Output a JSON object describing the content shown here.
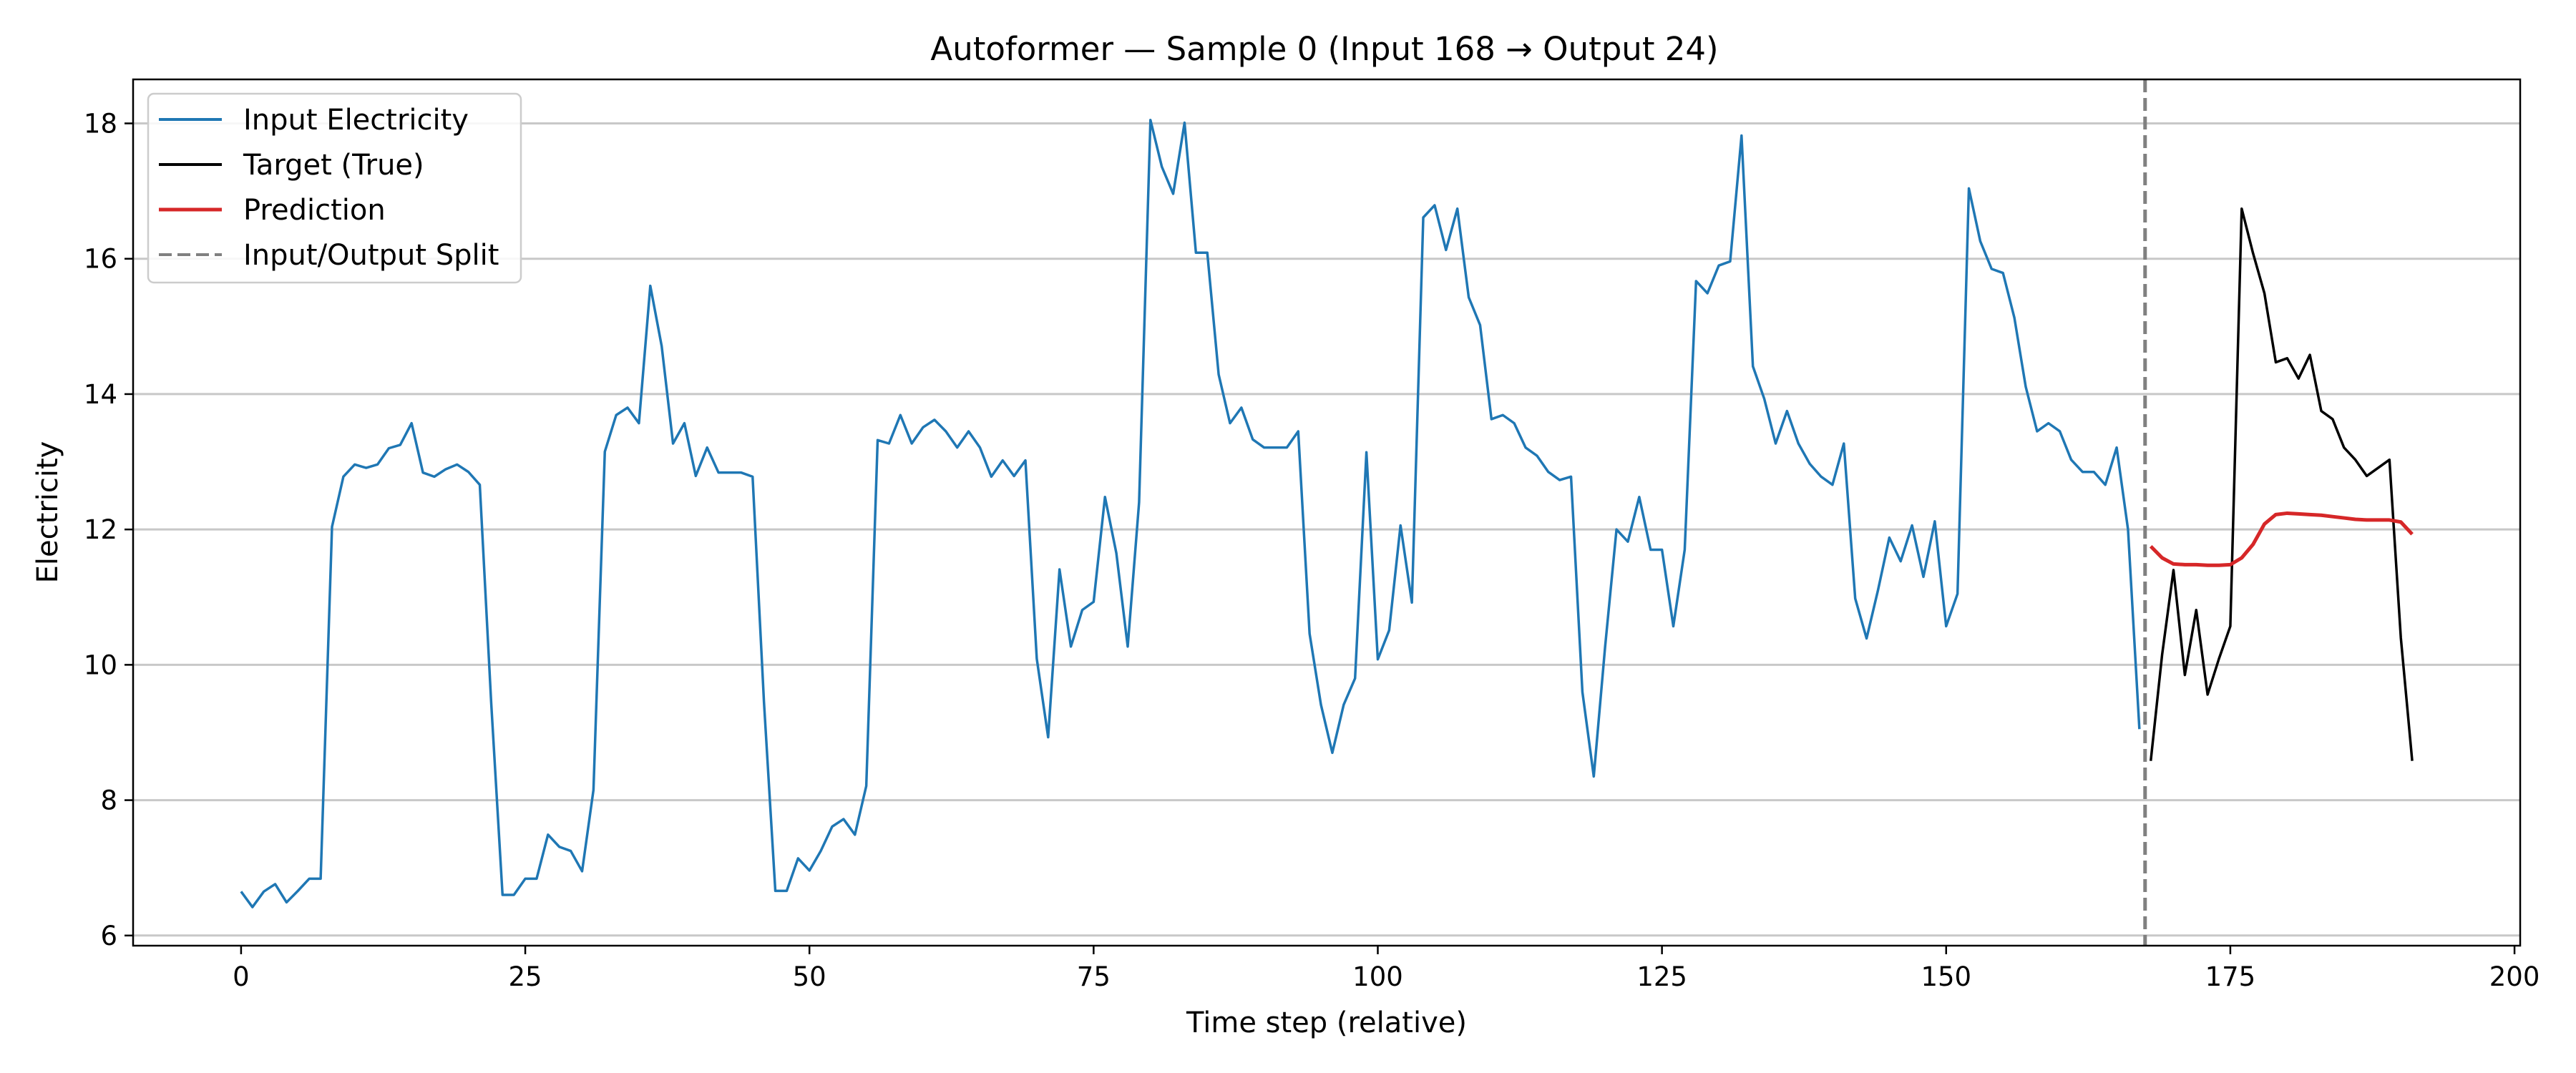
{
  "chart_data": {
    "type": "line",
    "title": "Autoformer — Sample 0 (Input 168 → Output 24)",
    "xlabel": "Time step (relative)",
    "ylabel": "Electricity",
    "xlim": [
      -9.5,
      200.5
    ],
    "ylim": [
      5.85,
      18.65
    ],
    "xticks": [
      0,
      25,
      50,
      75,
      100,
      125,
      150,
      175,
      200
    ],
    "yticks": [
      6,
      8,
      10,
      12,
      14,
      16,
      18
    ],
    "grid": "horizontal",
    "legend_position": "top-left",
    "split_x": 167.5,
    "series": [
      {
        "name": "Input Electricity",
        "color": "#1f77b4",
        "x_start": 0,
        "values": [
          6.65,
          6.42,
          6.65,
          6.76,
          6.49,
          6.66,
          6.84,
          6.84,
          12.04,
          12.78,
          12.96,
          12.91,
          12.96,
          13.2,
          13.25,
          13.57,
          12.84,
          12.78,
          12.89,
          12.96,
          12.85,
          12.66,
          9.45,
          6.6,
          6.6,
          6.84,
          6.84,
          7.49,
          7.31,
          7.25,
          6.95,
          8.15,
          13.15,
          13.69,
          13.8,
          13.57,
          15.6,
          14.71,
          13.27,
          13.57,
          12.79,
          13.21,
          12.84,
          12.84,
          12.84,
          12.78,
          9.45,
          6.66,
          6.66,
          7.14,
          6.96,
          7.25,
          7.61,
          7.72,
          7.49,
          8.21,
          13.32,
          13.27,
          13.69,
          13.27,
          13.51,
          13.62,
          13.45,
          13.21,
          13.45,
          13.21,
          12.78,
          13.02,
          12.79,
          13.02,
          10.09,
          8.93,
          11.41,
          10.27,
          10.81,
          10.93,
          12.48,
          11.65,
          10.27,
          12.4,
          18.05,
          17.36,
          16.96,
          18.01,
          16.09,
          16.09,
          14.29,
          13.57,
          13.8,
          13.33,
          13.21,
          13.21,
          13.21,
          13.45,
          10.46,
          9.41,
          8.7,
          9.41,
          9.8,
          13.14,
          10.08,
          10.51,
          12.06,
          10.92,
          16.61,
          16.79,
          16.13,
          16.74,
          15.43,
          15.02,
          13.63,
          13.69,
          13.57,
          13.21,
          13.09,
          12.85,
          12.73,
          12.78,
          9.6,
          8.35,
          10.27,
          12.0,
          11.82,
          12.48,
          11.7,
          11.7,
          10.57,
          11.7,
          15.67,
          15.49,
          15.9,
          15.96,
          17.82,
          14.41,
          13.93,
          13.27,
          13.75,
          13.27,
          12.97,
          12.78,
          12.66,
          13.27,
          10.98,
          10.39,
          11.1,
          11.88,
          11.53,
          12.06,
          11.3,
          12.12,
          10.57,
          11.05,
          17.04,
          16.26,
          15.85,
          15.79,
          15.13,
          14.11,
          13.45,
          13.57,
          13.45,
          13.03,
          12.85,
          12.85,
          12.66,
          13.21,
          12.0,
          9.05
        ]
      },
      {
        "name": "Target (True)",
        "color": "#000000",
        "x_start": 168,
        "values": [
          8.58,
          10.15,
          11.4,
          9.85,
          10.81,
          9.56,
          10.09,
          10.57,
          16.74,
          16.08,
          15.49,
          14.47,
          14.53,
          14.23,
          14.58,
          13.75,
          13.63,
          13.21,
          13.03,
          12.79,
          12.91,
          13.03,
          10.4,
          8.58
        ]
      },
      {
        "name": "Prediction",
        "color": "#d62728",
        "x_start": 168,
        "values": [
          11.75,
          11.58,
          11.49,
          11.48,
          11.48,
          11.47,
          11.47,
          11.48,
          11.58,
          11.78,
          12.08,
          12.22,
          12.24,
          12.23,
          12.22,
          12.21,
          12.19,
          12.17,
          12.15,
          12.14,
          12.14,
          12.14,
          12.11,
          11.93
        ]
      }
    ],
    "legend": [
      {
        "label": "Input Electricity",
        "color": "#1f77b4",
        "style": "solid"
      },
      {
        "label": "Target (True)",
        "color": "#000000",
        "style": "solid"
      },
      {
        "label": "Prediction",
        "color": "#d62728",
        "style": "solid"
      },
      {
        "label": "Input/Output Split",
        "color": "#808080",
        "style": "dashed"
      }
    ]
  }
}
